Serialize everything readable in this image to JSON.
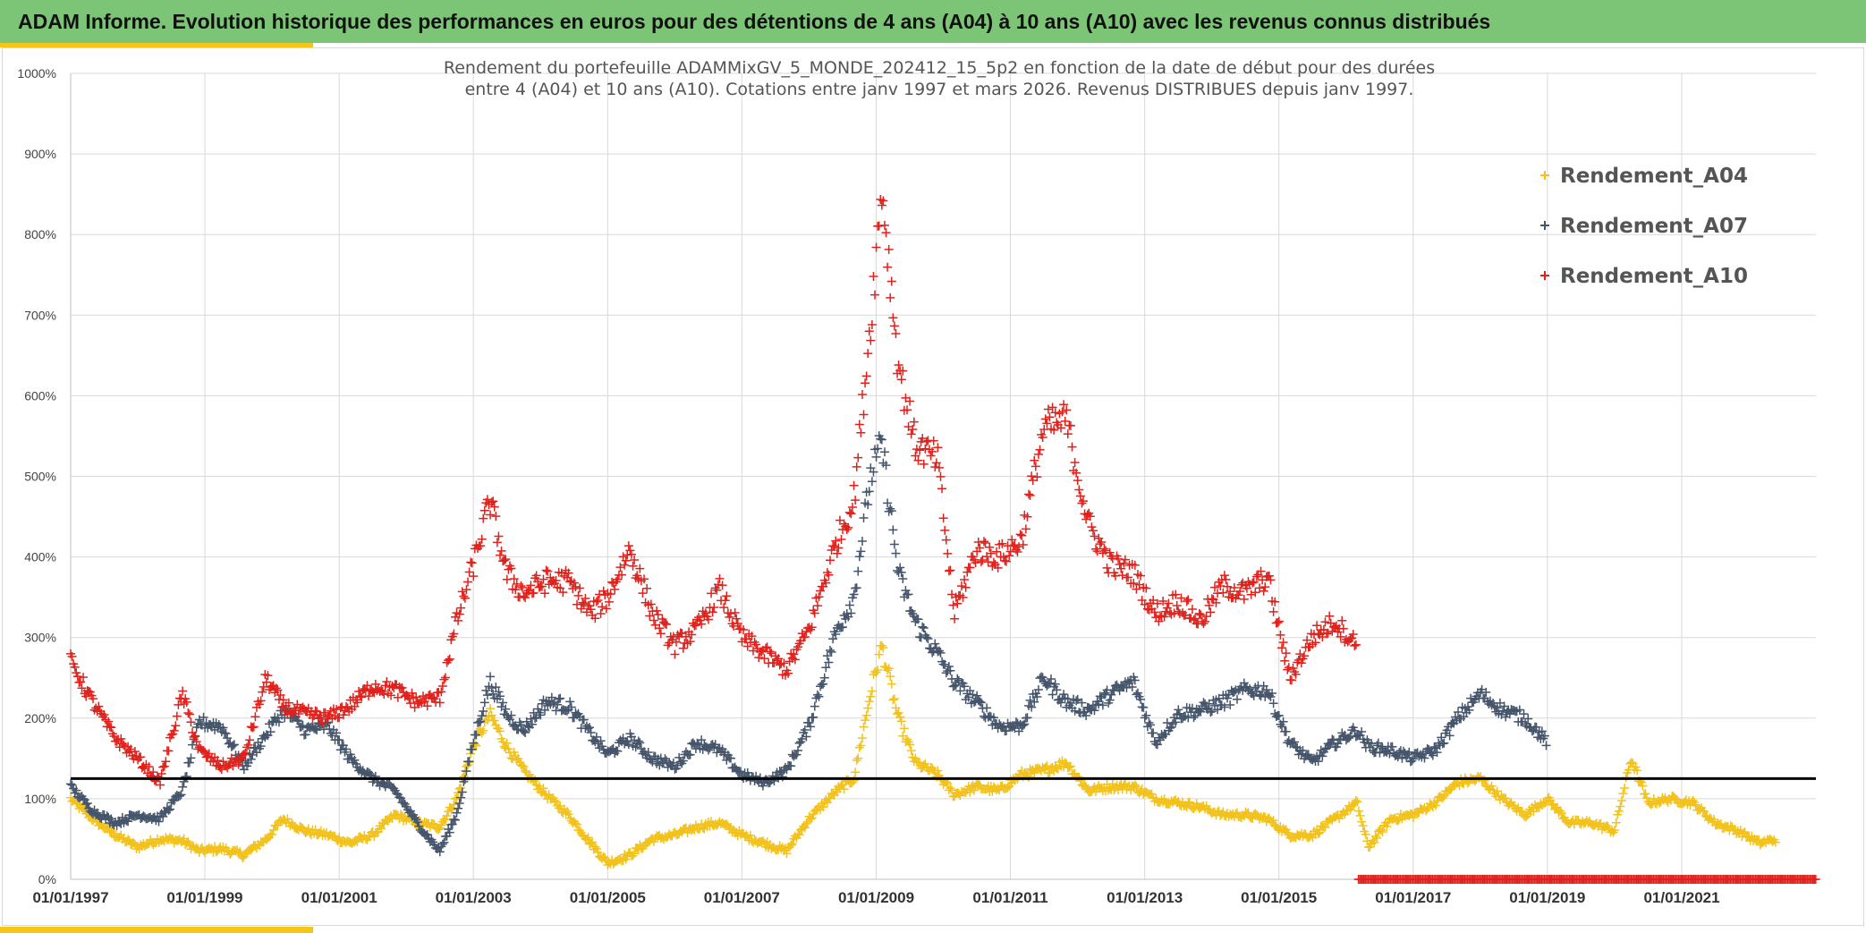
{
  "header": {
    "title": "ADAM Informe. Evolution historique des performances en euros pour des détentions de 4 ans (A04) à 10 ans (A10) avec les revenus connus distribués"
  },
  "colors": {
    "banner": "#7cc576",
    "accent": "#f5c518",
    "A04": "#f2c21b",
    "A07": "#44546a",
    "A10": "#e0201b",
    "reference_line": "#000000"
  },
  "chart_data": {
    "type": "scatter",
    "title_lines": [
      "Rendement du portefeuille ADAMMixGV_5_MONDE_202412_15_5p2  en fonction de la date de début pour des durées",
      "entre 4 (A04) et 10 ans (A10). Cotations entre janv 1997 et mars 2026. Revenus DISTRIBUES depuis janv 1997."
    ],
    "x_axis": {
      "type": "date",
      "range": [
        "1997-01-01",
        "2023-01-01"
      ],
      "tick_labels": [
        "01/01/1997",
        "01/01/1999",
        "01/01/2001",
        "01/01/2003",
        "01/01/2005",
        "01/01/2007",
        "01/01/2009",
        "01/01/2011",
        "01/01/2013",
        "01/01/2015",
        "01/01/2017",
        "01/01/2019",
        "01/01/2021"
      ]
    },
    "y_axis": {
      "unit": "%",
      "range": [
        0,
        1000
      ],
      "tick_labels": [
        "0%",
        "100%",
        "200%",
        "300%",
        "400%",
        "500%",
        "600%",
        "700%",
        "800%",
        "900%",
        "1000%"
      ]
    },
    "grid": true,
    "legend_position": "top-right",
    "reference_line_y": 125,
    "marker": "+",
    "series": [
      {
        "name": "Rendement_A04",
        "key": "A04",
        "end": "2022-06-01",
        "points": [
          [
            "1997-01-01",
            100
          ],
          [
            "1997-05-01",
            75
          ],
          [
            "1997-09-01",
            55
          ],
          [
            "1998-01-01",
            40
          ],
          [
            "1998-05-01",
            50
          ],
          [
            "1998-09-01",
            48
          ],
          [
            "1998-12-01",
            35
          ],
          [
            "1999-04-01",
            38
          ],
          [
            "1999-08-01",
            30
          ],
          [
            "1999-12-01",
            50
          ],
          [
            "2000-03-01",
            75
          ],
          [
            "2000-07-01",
            60
          ],
          [
            "2000-11-01",
            55
          ],
          [
            "2001-03-01",
            45
          ],
          [
            "2001-07-01",
            55
          ],
          [
            "2001-11-01",
            80
          ],
          [
            "2002-03-01",
            70
          ],
          [
            "2002-07-01",
            65
          ],
          [
            "2002-10-01",
            100
          ],
          [
            "2003-01-01",
            165
          ],
          [
            "2003-04-01",
            205
          ],
          [
            "2003-07-01",
            165
          ],
          [
            "2003-10-01",
            135
          ],
          [
            "2004-02-01",
            105
          ],
          [
            "2004-06-01",
            80
          ],
          [
            "2004-10-01",
            45
          ],
          [
            "2005-01-01",
            20
          ],
          [
            "2005-05-01",
            30
          ],
          [
            "2005-09-01",
            50
          ],
          [
            "2006-01-01",
            55
          ],
          [
            "2006-05-01",
            65
          ],
          [
            "2006-09-01",
            70
          ],
          [
            "2007-01-01",
            55
          ],
          [
            "2007-05-01",
            45
          ],
          [
            "2007-09-01",
            35
          ],
          [
            "2008-01-01",
            75
          ],
          [
            "2008-06-01",
            110
          ],
          [
            "2008-09-01",
            125
          ],
          [
            "2008-12-01",
            230
          ],
          [
            "2009-02-01",
            290
          ],
          [
            "2009-05-01",
            200
          ],
          [
            "2009-08-01",
            145
          ],
          [
            "2009-12-01",
            130
          ],
          [
            "2010-03-01",
            105
          ],
          [
            "2010-07-01",
            115
          ],
          [
            "2010-11-01",
            110
          ],
          [
            "2011-03-01",
            130
          ],
          [
            "2011-07-01",
            135
          ],
          [
            "2011-11-01",
            145
          ],
          [
            "2012-03-01",
            110
          ],
          [
            "2012-07-01",
            115
          ],
          [
            "2012-11-01",
            115
          ],
          [
            "2013-03-01",
            100
          ],
          [
            "2013-07-01",
            95
          ],
          [
            "2013-11-01",
            90
          ],
          [
            "2014-03-01",
            80
          ],
          [
            "2014-07-01",
            80
          ],
          [
            "2014-11-01",
            75
          ],
          [
            "2015-03-01",
            55
          ],
          [
            "2015-07-01",
            55
          ],
          [
            "2015-11-01",
            75
          ],
          [
            "2016-03-01",
            95
          ],
          [
            "2016-05-01",
            40
          ],
          [
            "2016-09-01",
            75
          ],
          [
            "2017-01-01",
            80
          ],
          [
            "2017-05-01",
            95
          ],
          [
            "2017-09-01",
            120
          ],
          [
            "2018-01-01",
            125
          ],
          [
            "2018-05-01",
            100
          ],
          [
            "2018-09-01",
            80
          ],
          [
            "2019-01-01",
            100
          ],
          [
            "2019-05-01",
            70
          ],
          [
            "2019-09-01",
            70
          ],
          [
            "2020-01-01",
            60
          ],
          [
            "2020-04-01",
            150
          ],
          [
            "2020-07-01",
            95
          ],
          [
            "2020-11-01",
            100
          ],
          [
            "2021-03-01",
            95
          ],
          [
            "2021-07-01",
            70
          ],
          [
            "2021-11-01",
            60
          ],
          [
            "2022-03-01",
            45
          ],
          [
            "2022-06-01",
            50
          ]
        ]
      },
      {
        "name": "Rendement_A07",
        "key": "A07",
        "end": "2019-01-01",
        "points": [
          [
            "1997-01-01",
            115
          ],
          [
            "1997-05-01",
            85
          ],
          [
            "1997-09-01",
            70
          ],
          [
            "1998-01-01",
            80
          ],
          [
            "1998-05-01",
            75
          ],
          [
            "1998-09-01",
            110
          ],
          [
            "1998-12-01",
            195
          ],
          [
            "1999-04-01",
            190
          ],
          [
            "1999-08-01",
            140
          ],
          [
            "1999-12-01",
            180
          ],
          [
            "2000-03-01",
            210
          ],
          [
            "2000-07-01",
            185
          ],
          [
            "2000-11-01",
            190
          ],
          [
            "2001-03-01",
            150
          ],
          [
            "2001-07-01",
            125
          ],
          [
            "2001-11-01",
            110
          ],
          [
            "2002-03-01",
            70
          ],
          [
            "2002-07-01",
            35
          ],
          [
            "2002-10-01",
            80
          ],
          [
            "2003-01-01",
            170
          ],
          [
            "2003-04-01",
            245
          ],
          [
            "2003-07-01",
            205
          ],
          [
            "2003-10-01",
            185
          ],
          [
            "2004-02-01",
            220
          ],
          [
            "2004-06-01",
            215
          ],
          [
            "2004-10-01",
            180
          ],
          [
            "2005-01-01",
            155
          ],
          [
            "2005-05-01",
            175
          ],
          [
            "2005-09-01",
            150
          ],
          [
            "2006-01-01",
            140
          ],
          [
            "2006-05-01",
            170
          ],
          [
            "2006-09-01",
            160
          ],
          [
            "2007-01-01",
            130
          ],
          [
            "2007-05-01",
            120
          ],
          [
            "2007-09-01",
            135
          ],
          [
            "2008-01-01",
            190
          ],
          [
            "2008-06-01",
            310
          ],
          [
            "2008-09-01",
            350
          ],
          [
            "2008-12-01",
            500
          ],
          [
            "2009-02-01",
            540
          ],
          [
            "2009-05-01",
            380
          ],
          [
            "2009-08-01",
            320
          ],
          [
            "2009-12-01",
            280
          ],
          [
            "2010-03-01",
            245
          ],
          [
            "2010-07-01",
            220
          ],
          [
            "2010-11-01",
            190
          ],
          [
            "2011-03-01",
            190
          ],
          [
            "2011-07-01",
            250
          ],
          [
            "2011-11-01",
            220
          ],
          [
            "2012-03-01",
            210
          ],
          [
            "2012-07-01",
            230
          ],
          [
            "2012-11-01",
            245
          ],
          [
            "2013-03-01",
            170
          ],
          [
            "2013-07-01",
            205
          ],
          [
            "2013-11-01",
            210
          ],
          [
            "2014-03-01",
            220
          ],
          [
            "2014-07-01",
            235
          ],
          [
            "2014-11-01",
            235
          ],
          [
            "2015-03-01",
            170
          ],
          [
            "2015-07-01",
            145
          ],
          [
            "2015-11-01",
            170
          ],
          [
            "2016-03-01",
            185
          ],
          [
            "2016-05-01",
            165
          ],
          [
            "2016-09-01",
            160
          ],
          [
            "2017-01-01",
            150
          ],
          [
            "2017-05-01",
            160
          ],
          [
            "2017-09-01",
            200
          ],
          [
            "2018-01-01",
            230
          ],
          [
            "2018-05-01",
            210
          ],
          [
            "2018-09-01",
            200
          ],
          [
            "2019-01-01",
            170
          ]
        ]
      },
      {
        "name": "Rendement_A10",
        "key": "A10",
        "end": "2016-03-01",
        "tail_end": "2023-01-01",
        "tail_value": 0,
        "points": [
          [
            "1997-01-01",
            270
          ],
          [
            "1997-05-01",
            220
          ],
          [
            "1997-09-01",
            175
          ],
          [
            "1998-01-01",
            150
          ],
          [
            "1998-05-01",
            120
          ],
          [
            "1998-09-01",
            230
          ],
          [
            "1998-12-01",
            160
          ],
          [
            "1999-04-01",
            140
          ],
          [
            "1999-08-01",
            150
          ],
          [
            "1999-12-01",
            250
          ],
          [
            "2000-03-01",
            215
          ],
          [
            "2000-07-01",
            205
          ],
          [
            "2000-11-01",
            200
          ],
          [
            "2001-03-01",
            215
          ],
          [
            "2001-07-01",
            240
          ],
          [
            "2001-11-01",
            235
          ],
          [
            "2002-03-01",
            220
          ],
          [
            "2002-07-01",
            225
          ],
          [
            "2002-10-01",
            320
          ],
          [
            "2003-01-01",
            390
          ],
          [
            "2003-04-01",
            470
          ],
          [
            "2003-07-01",
            380
          ],
          [
            "2003-10-01",
            355
          ],
          [
            "2004-02-01",
            370
          ],
          [
            "2004-06-01",
            370
          ],
          [
            "2004-10-01",
            330
          ],
          [
            "2005-01-01",
            350
          ],
          [
            "2005-05-01",
            410
          ],
          [
            "2005-09-01",
            330
          ],
          [
            "2006-01-01",
            290
          ],
          [
            "2006-05-01",
            310
          ],
          [
            "2006-09-01",
            360
          ],
          [
            "2007-01-01",
            300
          ],
          [
            "2007-05-01",
            280
          ],
          [
            "2007-09-01",
            260
          ],
          [
            "2008-01-01",
            310
          ],
          [
            "2008-06-01",
            420
          ],
          [
            "2008-09-01",
            470
          ],
          [
            "2008-12-01",
            690
          ],
          [
            "2009-02-01",
            860
          ],
          [
            "2009-05-01",
            640
          ],
          [
            "2009-08-01",
            540
          ],
          [
            "2009-12-01",
            520
          ],
          [
            "2010-03-01",
            330
          ],
          [
            "2010-07-01",
            410
          ],
          [
            "2010-11-01",
            400
          ],
          [
            "2011-03-01",
            420
          ],
          [
            "2011-07-01",
            560
          ],
          [
            "2011-11-01",
            570
          ],
          [
            "2012-03-01",
            440
          ],
          [
            "2012-07-01",
            390
          ],
          [
            "2012-11-01",
            380
          ],
          [
            "2013-03-01",
            330
          ],
          [
            "2013-07-01",
            345
          ],
          [
            "2013-11-01",
            320
          ],
          [
            "2014-03-01",
            365
          ],
          [
            "2014-07-01",
            355
          ],
          [
            "2014-11-01",
            375
          ],
          [
            "2015-03-01",
            250
          ],
          [
            "2015-07-01",
            300
          ],
          [
            "2015-11-01",
            320
          ],
          [
            "2016-03-01",
            290
          ]
        ]
      }
    ]
  }
}
